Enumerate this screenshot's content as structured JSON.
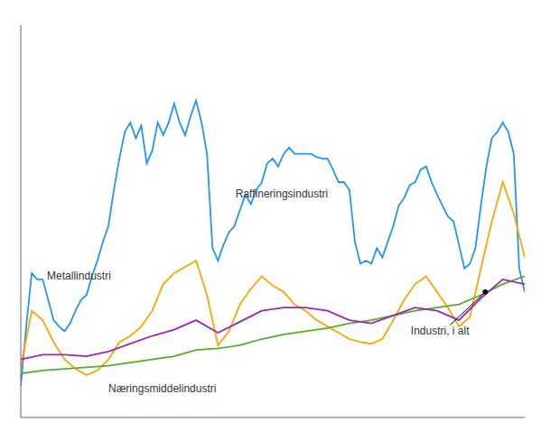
{
  "chart_data": {
    "type": "line",
    "grid": false,
    "tick_labels": false,
    "xlim": [
      2000,
      2023
    ],
    "ylim": [
      60,
      310
    ],
    "xticks": [],
    "yticks": [],
    "annotations": [
      "Raffineringsindustri",
      "Metallindustri",
      "Næringsmiddelindustri",
      "Industri, i alt"
    ],
    "series": [
      {
        "name": "Raffineringsindustri",
        "color": "#2196F3",
        "x": [
          2000.0,
          2000.25,
          2000.5,
          2000.75,
          2001.0,
          2001.25,
          2001.5,
          2001.75,
          2002.0,
          2002.25,
          2002.5,
          2002.75,
          2003.0,
          2003.25,
          2003.5,
          2003.75,
          2004.0,
          2004.25,
          2004.5,
          2004.75,
          2005.0,
          2005.25,
          2005.5,
          2005.75,
          2006.0,
          2006.25,
          2006.5,
          2006.75,
          2007.0,
          2007.25,
          2007.5,
          2007.75,
          2008.0,
          2008.25,
          2008.5,
          2008.75,
          2009.0,
          2009.25,
          2009.5,
          2009.75,
          2010.0,
          2010.25,
          2010.5,
          2010.75,
          2011.0,
          2011.25,
          2011.5,
          2011.75,
          2012.0,
          2012.25,
          2012.5,
          2012.75,
          2013.0,
          2013.25,
          2013.5,
          2013.75,
          2014.0,
          2014.25,
          2014.5,
          2014.75,
          2015.0,
          2015.25,
          2015.5,
          2015.75,
          2016.0,
          2016.25,
          2016.5,
          2016.75,
          2017.0,
          2017.25,
          2017.5,
          2017.75,
          2018.0,
          2018.25,
          2018.5,
          2018.75,
          2019.0,
          2019.25,
          2019.5,
          2019.75,
          2020.0,
          2020.25,
          2020.5,
          2020.75,
          2021.0,
          2021.25,
          2021.5,
          2021.75,
          2022.0,
          2022.25,
          2022.5,
          2022.75,
          2023.0
        ],
        "values": [
          80,
          118,
          152,
          148,
          148,
          135,
          122,
          118,
          115,
          120,
          128,
          135,
          138,
          150,
          160,
          172,
          182,
          205,
          225,
          242,
          248,
          238,
          246,
          222,
          230,
          248,
          240,
          248,
          260,
          248,
          240,
          252,
          262,
          248,
          228,
          168,
          160,
          170,
          178,
          182,
          192,
          202,
          196,
          205,
          210,
          222,
          225,
          220,
          228,
          232,
          228,
          228,
          228,
          228,
          226,
          225,
          225,
          218,
          210,
          210,
          205,
          172,
          158,
          160,
          158,
          168,
          162,
          172,
          182,
          195,
          200,
          208,
          210,
          218,
          220,
          210,
          202,
          195,
          188,
          185,
          170,
          155,
          158,
          168,
          195,
          220,
          238,
          242,
          248,
          242,
          228,
          155,
          140
        ]
      },
      {
        "name": "Metallindustri",
        "color": "#FFA500",
        "x": [
          2000.0,
          2000.5,
          2001.0,
          2001.5,
          2002.0,
          2002.5,
          2003.0,
          2003.5,
          2004.0,
          2004.5,
          2005.0,
          2005.5,
          2006.0,
          2006.5,
          2007.0,
          2007.5,
          2008.0,
          2008.5,
          2009.0,
          2009.5,
          2010.0,
          2010.5,
          2011.0,
          2011.5,
          2012.0,
          2012.5,
          2013.0,
          2013.5,
          2014.0,
          2014.5,
          2015.0,
          2015.5,
          2016.0,
          2016.5,
          2017.0,
          2017.5,
          2018.0,
          2018.5,
          2019.0,
          2019.5,
          2020.0,
          2020.5,
          2021.0,
          2021.5,
          2022.0,
          2022.5,
          2023.0
        ],
        "values": [
          92,
          128,
          122,
          108,
          97,
          91,
          87,
          90,
          97,
          108,
          112,
          118,
          128,
          145,
          152,
          156,
          160,
          138,
          106,
          115,
          132,
          142,
          150,
          144,
          140,
          132,
          128,
          122,
          118,
          114,
          110,
          108,
          107,
          110,
          122,
          135,
          145,
          150,
          140,
          130,
          118,
          124,
          155,
          185,
          210,
          190,
          162
        ]
      },
      {
        "name": "Næringsmiddelindustri",
        "color": "#5aaa30",
        "x": [
          2000,
          2001,
          2002,
          2003,
          2004,
          2005,
          2006,
          2007,
          2008,
          2009,
          2010,
          2011,
          2012,
          2013,
          2014,
          2015,
          2016,
          2017,
          2018,
          2019,
          2020,
          2021,
          2022,
          2023
        ],
        "values": [
          88,
          90,
          91,
          92,
          93,
          95,
          97,
          99,
          103,
          104,
          106,
          110,
          113,
          115,
          117,
          120,
          122,
          125,
          128,
          130,
          132,
          138,
          145,
          150
        ]
      },
      {
        "name": "Industri, i alt",
        "color": "#9C27B0",
        "x": [
          2000,
          2001,
          2002,
          2003,
          2004,
          2005,
          2006,
          2007,
          2008,
          2009,
          2010,
          2011,
          2012,
          2013,
          2014,
          2015,
          2016,
          2017,
          2018,
          2019,
          2020,
          2021,
          2022,
          2023
        ],
        "values": [
          97,
          100,
          100,
          99,
          102,
          107,
          112,
          116,
          122,
          114,
          121,
          128,
          130,
          130,
          128,
          122,
          120,
          125,
          130,
          128,
          122,
          136,
          148,
          145
        ]
      }
    ]
  }
}
